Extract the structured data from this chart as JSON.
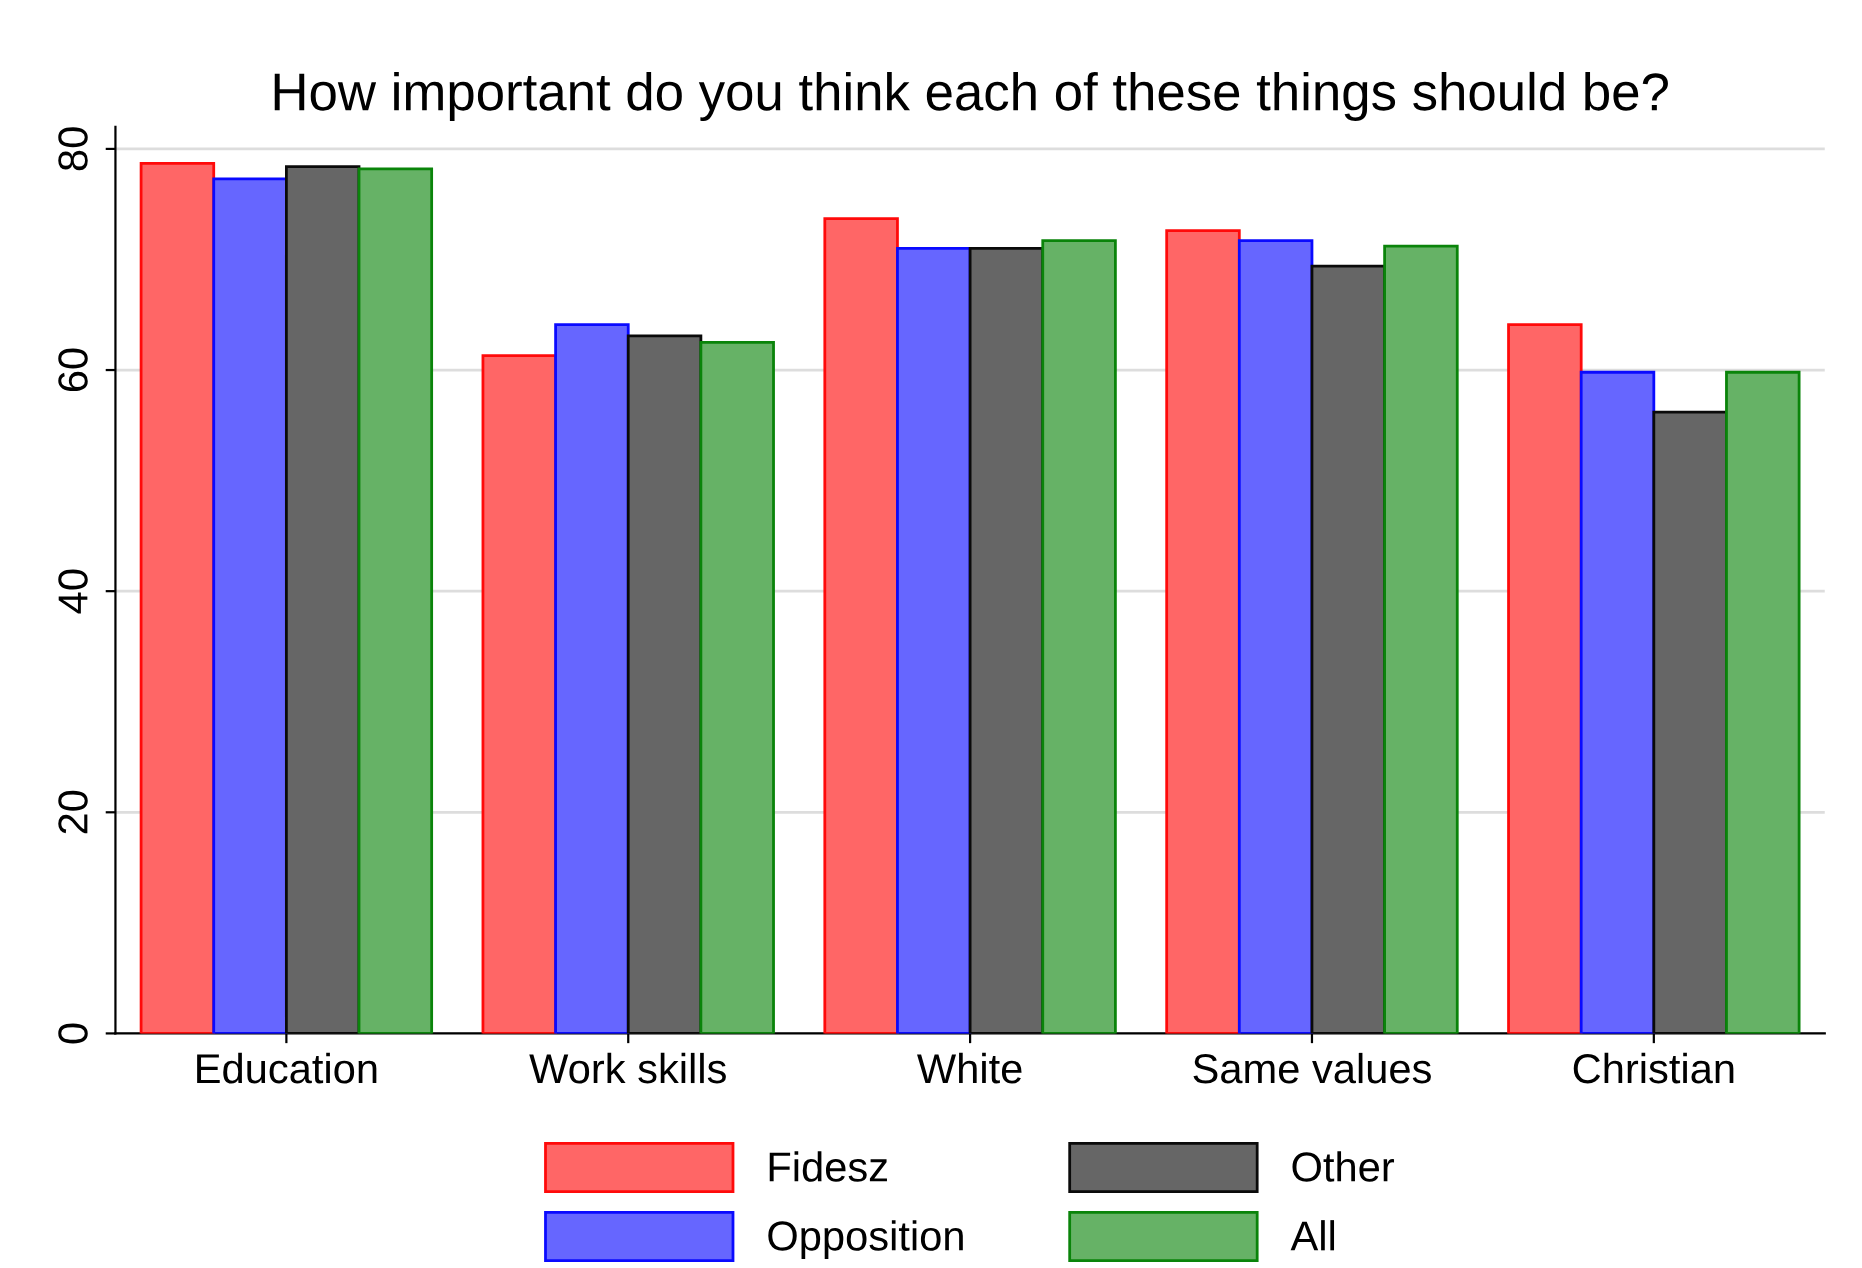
{
  "chart_data": {
    "type": "bar",
    "title": "How important do you think each of these things should be?",
    "categories": [
      "Education",
      "Work skills",
      "White",
      "Same values",
      "Christian"
    ],
    "series": [
      {
        "name": "Fidesz",
        "color": "#ff6666",
        "values": [
          78.7,
          61.3,
          73.7,
          72.6,
          64.1
        ]
      },
      {
        "name": "Opposition",
        "color": "#6666ff",
        "values": [
          77.3,
          64.1,
          71.0,
          71.7,
          59.8
        ]
      },
      {
        "name": "Other",
        "color": "#666666",
        "values": [
          78.4,
          63.1,
          71.0,
          69.4,
          56.2
        ]
      },
      {
        "name": "All",
        "color": "#66b266",
        "values": [
          78.2,
          62.5,
          71.7,
          71.2,
          59.8
        ]
      }
    ],
    "ylim": [
      0,
      82
    ],
    "yticks": [
      0,
      20,
      40,
      60,
      80
    ],
    "grid": "y",
    "legend": "bottom"
  }
}
